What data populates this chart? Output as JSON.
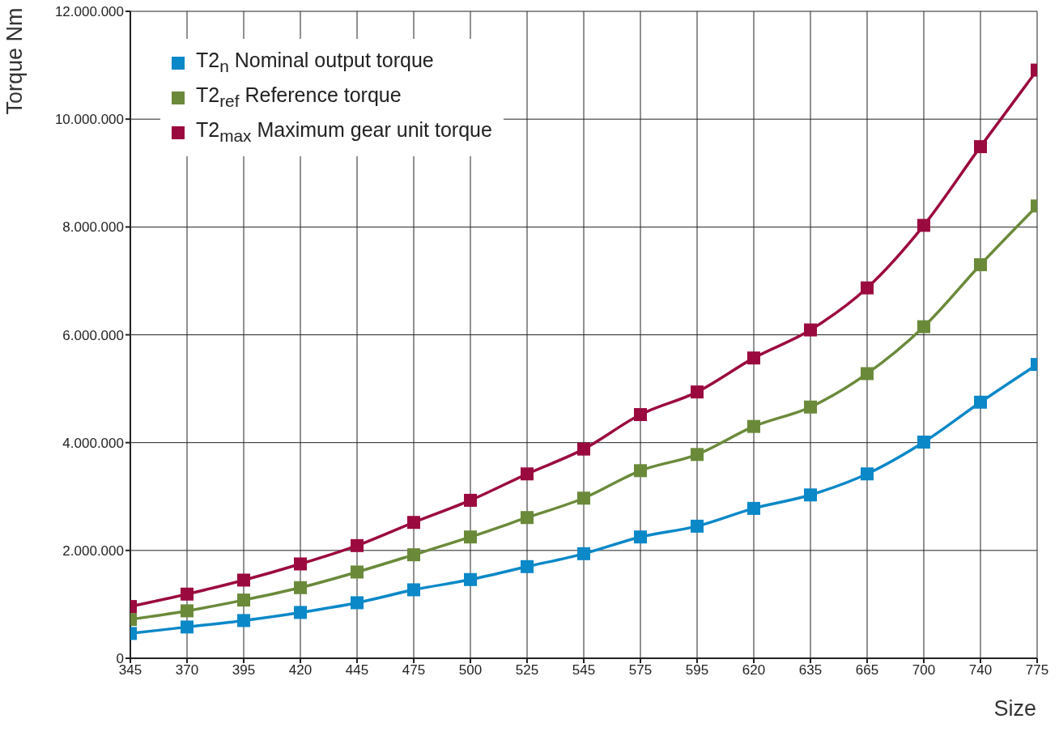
{
  "chart_data": {
    "type": "line",
    "xlabel": "Size",
    "ylabel": "Torque Nm",
    "categories": [
      "345",
      "370",
      "395",
      "420",
      "445",
      "475",
      "500",
      "525",
      "545",
      "575",
      "595",
      "620",
      "635",
      "665",
      "700",
      "740",
      "775"
    ],
    "series": [
      {
        "name": "T2$_{n}$ Nominal output torque",
        "color": "#0a88c8",
        "values": [
          460000,
          580000,
          700000,
          850000,
          1030000,
          1270000,
          1460000,
          1700000,
          1940000,
          2250000,
          2450000,
          2780000,
          3030000,
          3420000,
          4010000,
          4750000,
          5450000
        ]
      },
      {
        "name": "T2$_{ref}$ Reference torque",
        "color": "#6a8a3a",
        "values": [
          720000,
          880000,
          1080000,
          1310000,
          1600000,
          1920000,
          2250000,
          2610000,
          2970000,
          3480000,
          3780000,
          4300000,
          4660000,
          5280000,
          6150000,
          7300000,
          8390000
        ]
      },
      {
        "name": "T2$_{max}$ Maximum gear unit torque",
        "color": "#9b0a3f",
        "values": [
          960000,
          1190000,
          1450000,
          1750000,
          2090000,
          2520000,
          2930000,
          3420000,
          3880000,
          4520000,
          4940000,
          5570000,
          6090000,
          6870000,
          8030000,
          9490000,
          10910000
        ]
      }
    ],
    "ylim": [
      0,
      12000000
    ],
    "yticks": [
      {
        "value": 0,
        "label": "0"
      },
      {
        "value": 2000000,
        "label": "2.000.000"
      },
      {
        "value": 4000000,
        "label": "4.000.000"
      },
      {
        "value": 6000000,
        "label": "6.000.000"
      },
      {
        "value": 8000000,
        "label": "8.000.000"
      },
      {
        "value": 10000000,
        "label": "10.000.000"
      },
      {
        "value": 12000000,
        "label": "12.000.000"
      }
    ],
    "grid": true,
    "legend": "top left",
    "marker": "square",
    "line_style": "solid"
  }
}
